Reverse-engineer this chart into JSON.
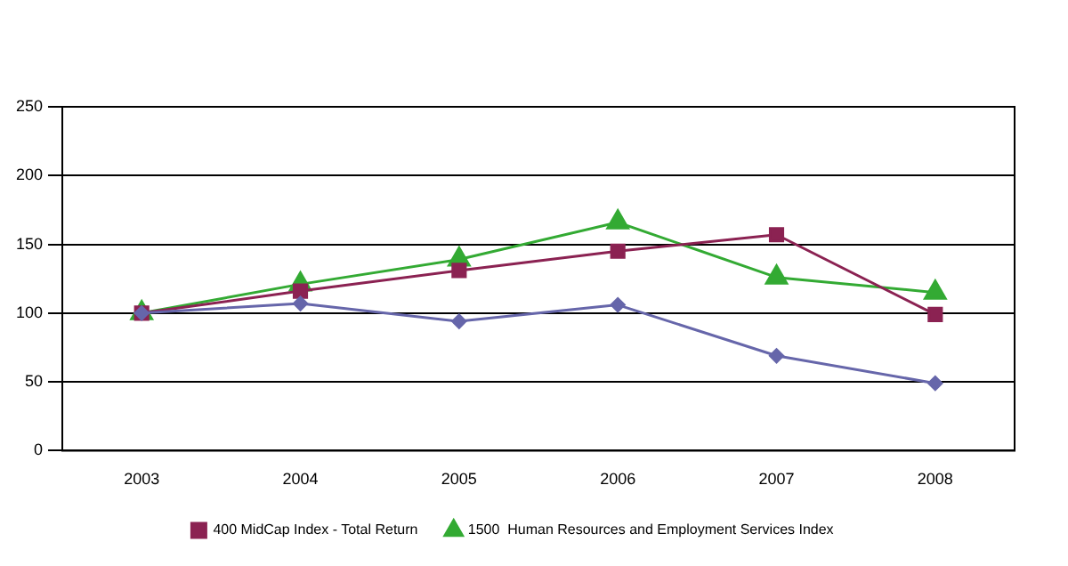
{
  "chart_data": {
    "type": "line",
    "categories": [
      "2003",
      "2004",
      "2005",
      "2006",
      "2007",
      "2008"
    ],
    "series": [
      {
        "color": "#6666aa",
        "marker": "diamond",
        "values": [
          100,
          107,
          94,
          106,
          69,
          49
        ]
      },
      {
        "name": "400 MidCap Index - Total Return",
        "color": "#8b2252",
        "marker": "square",
        "values": [
          100,
          116,
          131,
          145,
          157,
          99
        ]
      },
      {
        "name": "1500  Human Resources and Employment Services Index",
        "color": "#33aa33",
        "marker": "triangle",
        "values": [
          100,
          121,
          139,
          166,
          126,
          115
        ]
      }
    ],
    "ylim": [
      0,
      250
    ],
    "yticks": [
      0,
      50,
      100,
      150,
      200,
      250
    ],
    "grid": "y",
    "legend": "bottom",
    "line_style": "solid"
  }
}
